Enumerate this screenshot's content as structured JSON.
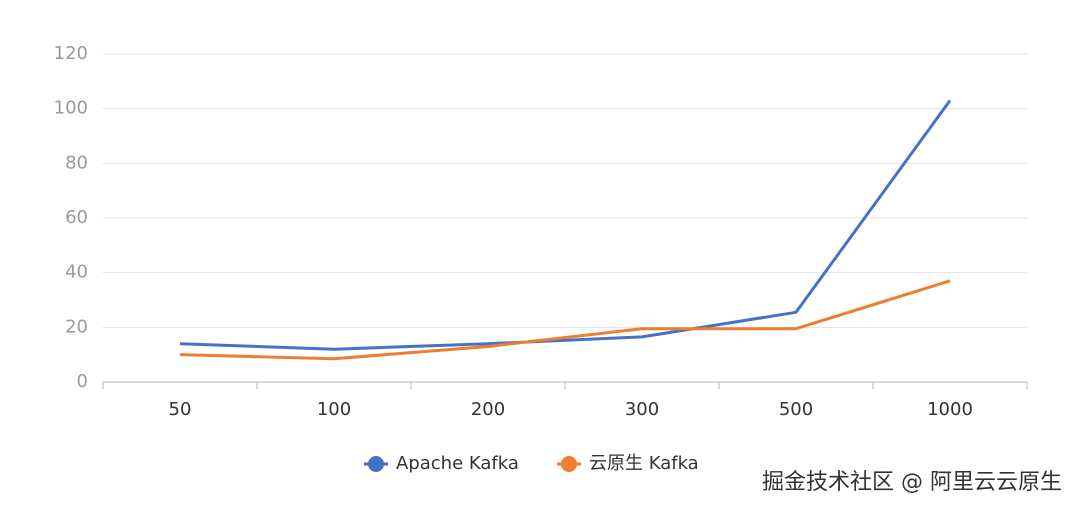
{
  "chart_data": {
    "type": "line",
    "categories": [
      "50",
      "100",
      "200",
      "300",
      "500",
      "1000"
    ],
    "series": [
      {
        "name": "Apache Kafka",
        "color": "#4472c4",
        "values": [
          14,
          12,
          14,
          16.5,
          25.5,
          103
        ]
      },
      {
        "name": "云原生 Kafka",
        "color": "#ed7d31",
        "values": [
          10,
          8.5,
          13,
          19.5,
          19.5,
          37
        ]
      }
    ],
    "ylim": [
      0,
      120
    ],
    "yticks": [
      0,
      20,
      40,
      60,
      80,
      100,
      120
    ],
    "grid": true,
    "legend": "bottom",
    "watermark": "掘金技术社区 @ 阿里云云原生"
  }
}
